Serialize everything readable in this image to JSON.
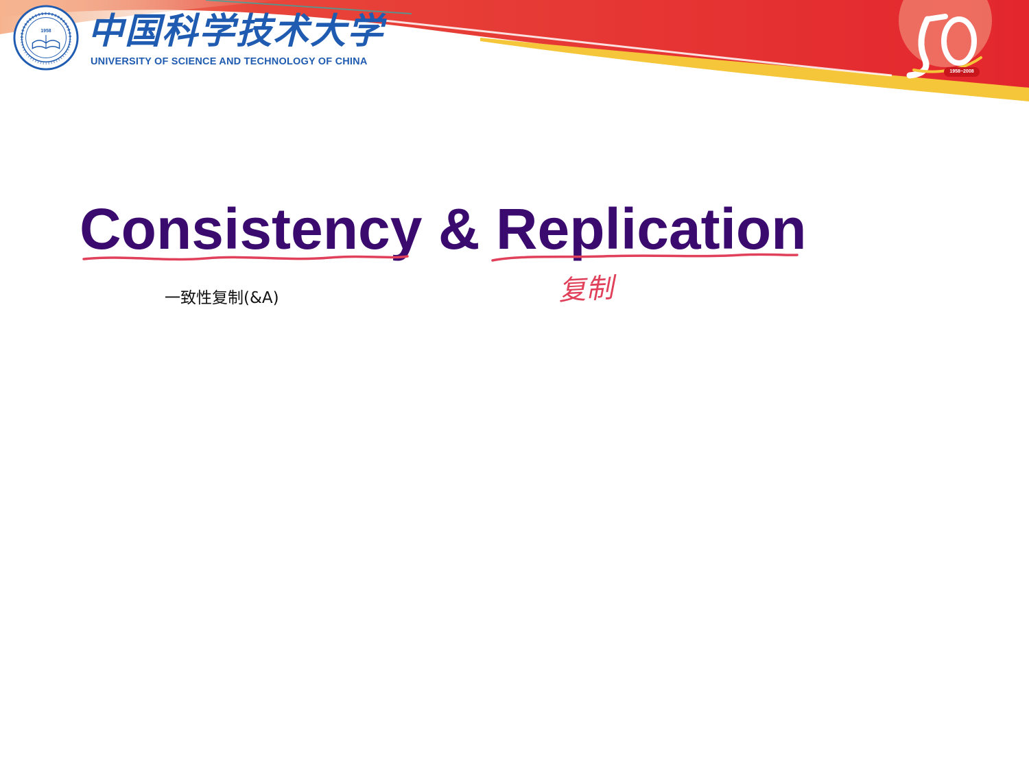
{
  "header": {
    "university_cn": "中国科学技术大学",
    "university_en": "UNIVERSITY OF SCIENCE AND TECHNOLOGY OF CHINA",
    "seal_year": "1958",
    "anniversary_years": "1958~2008"
  },
  "slide": {
    "title": "Consistency & Replication",
    "subtitle": "一致性复制(&A)"
  },
  "annotations": {
    "handwritten_note": "复制",
    "ink_color": "#e0405a"
  },
  "colors": {
    "title": "#3a0a6e",
    "university_blue": "#1f5bb0",
    "banner_red": "#e3262d",
    "banner_yellow": "#f5c53a"
  }
}
